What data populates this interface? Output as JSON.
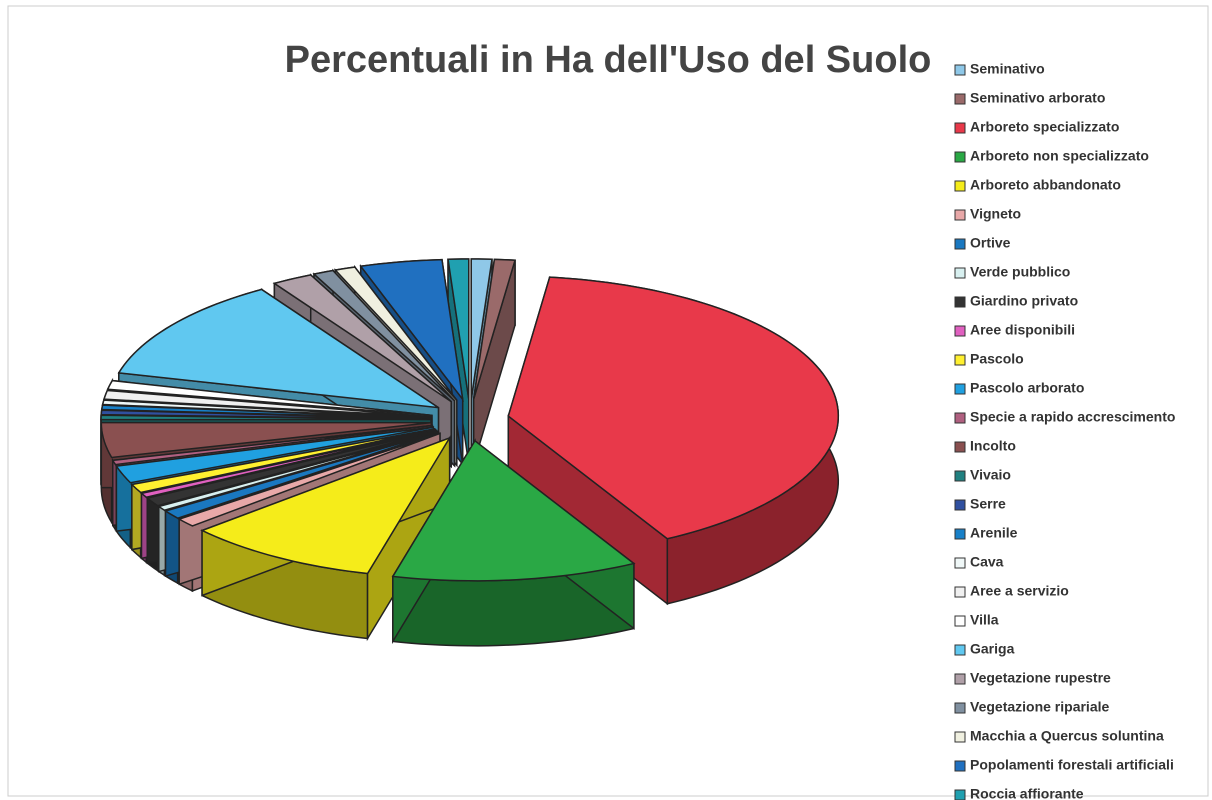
{
  "chart_data": {
    "type": "pie3d",
    "title": "Percentuali in Ha dell'Uso del Suolo",
    "categories": [
      "Seminativo",
      "Seminativo arborato",
      "Arboreto specializzato",
      "Arboreto non specializzato",
      "Arboreto abbandonato",
      "Vigneto",
      "Ortive",
      "Verde pubblico",
      "Giardino privato",
      "Aree disponibili",
      "Pascolo",
      "Pascolo arborato",
      "Specie a rapido accrescimento",
      "Incolto",
      "Vivaio",
      "Serre",
      "Arenile",
      "Cava",
      "Aree a servizio",
      "Villa",
      "Gariga",
      "Vegetazione rupestre",
      "Vegetazione ripariale",
      "Macchia a Quercus soluntina",
      "Popolamenti forestali artificiali",
      "Roccia affiorante"
    ],
    "values": [
      1,
      1,
      40,
      12,
      9.5,
      1,
      1,
      0.5,
      1,
      0.5,
      1,
      2,
      0.5,
      4,
      0.5,
      0.5,
      0.5,
      0.5,
      1,
      1,
      12,
      2,
      1,
      1,
      4,
      1
    ],
    "colors": [
      "#8fc8e8",
      "#9a6a6a",
      "#e8394a",
      "#2aa845",
      "#f5ec1a",
      "#e8a8a8",
      "#1a78c0",
      "#d8f0f0",
      "#333333",
      "#e060c0",
      "#fff030",
      "#20a0e0",
      "#b06080",
      "#8a5050",
      "#208080",
      "#3050a0",
      "#1880c8",
      "#f0f8f8",
      "#f0f0f0",
      "#ffffff",
      "#60c8f0",
      "#b0a0a8",
      "#8090a0",
      "#f0f0e0",
      "#2070c0",
      "#20a0b0"
    ],
    "legend": "right"
  }
}
